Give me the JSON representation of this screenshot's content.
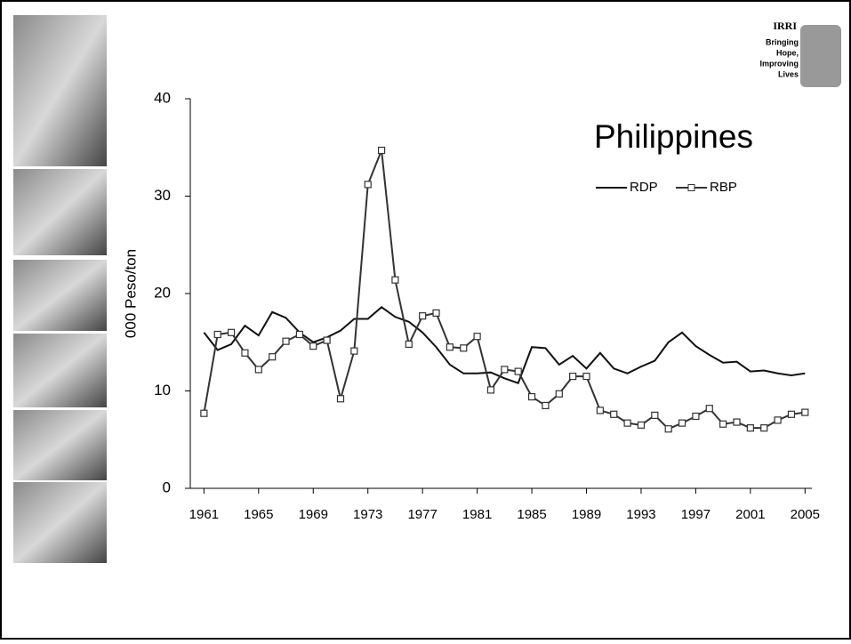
{
  "logo": {
    "name": "IRRI",
    "tagline": [
      "Bringing",
      "Hope,",
      "Improving",
      "Lives"
    ]
  },
  "chart_data": {
    "type": "line",
    "title": "Philippines",
    "y_label": "000 Peso/ton",
    "x": [
      1961,
      1962,
      1963,
      1964,
      1965,
      1966,
      1967,
      1968,
      1969,
      1970,
      1971,
      1972,
      1973,
      1974,
      1975,
      1976,
      1977,
      1978,
      1979,
      1980,
      1981,
      1982,
      1983,
      1984,
      1985,
      1986,
      1987,
      1988,
      1989,
      1990,
      1991,
      1992,
      1993,
      1994,
      1995,
      1996,
      1997,
      1998,
      1999,
      2000,
      2001,
      2002,
      2003,
      2004,
      2005
    ],
    "series": [
      {
        "name": "RDP",
        "color": "#111111",
        "marker": "none",
        "values": [
          16.0,
          14.2,
          14.8,
          16.7,
          15.7,
          18.1,
          17.5,
          16.0,
          15.0,
          15.5,
          16.2,
          17.4,
          17.4,
          18.6,
          17.6,
          17.1,
          16.0,
          14.5,
          12.7,
          11.8,
          11.8,
          11.9,
          11.3,
          10.8,
          14.5,
          14.4,
          12.7,
          13.6,
          12.3,
          13.9,
          12.3,
          11.8,
          12.5,
          13.1,
          15.0,
          16.0,
          14.6,
          13.7,
          12.9,
          13.0,
          12.0,
          12.1,
          11.8,
          11.6,
          11.8
        ]
      },
      {
        "name": "RBP",
        "color": "#333333",
        "marker": "square",
        "values": [
          7.7,
          15.8,
          16.0,
          13.9,
          12.2,
          13.5,
          15.1,
          15.8,
          14.6,
          15.2,
          9.2,
          14.1,
          31.2,
          34.7,
          21.4,
          14.8,
          17.7,
          18.0,
          14.5,
          14.4,
          15.6,
          10.1,
          12.2,
          12.0,
          9.4,
          8.5,
          9.7,
          11.5,
          11.5,
          8.0,
          7.6,
          6.7,
          6.5,
          7.5,
          6.1,
          6.7,
          7.4,
          8.2,
          6.6,
          6.8,
          6.2,
          6.2,
          7.0,
          7.6,
          7.8
        ]
      }
    ],
    "xlim": [
      1960,
      2005.5
    ],
    "xticks": [
      1961,
      1965,
      1969,
      1973,
      1977,
      1981,
      1985,
      1989,
      1993,
      1997,
      2001,
      2005
    ],
    "ylim": [
      0,
      40
    ],
    "yticks": [
      0,
      10,
      20,
      30,
      40
    ],
    "grid": false,
    "legend": "upper right"
  }
}
